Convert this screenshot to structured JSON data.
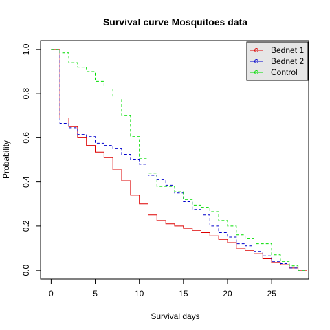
{
  "chart_data": {
    "type": "line",
    "step": true,
    "title": "Survival curve Mosquitoes data",
    "xlabel": "Survival days",
    "ylabel": "Probability",
    "xlim": [
      -1.2,
      29.2
    ],
    "ylim": [
      -0.04,
      1.04
    ],
    "xticks": [
      0,
      5,
      10,
      15,
      20,
      25
    ],
    "yticks": [
      0.0,
      0.2,
      0.4,
      0.6,
      0.8,
      1.0
    ],
    "xtick_labels": [
      "0",
      "5",
      "10",
      "15",
      "20",
      "25"
    ],
    "ytick_labels": [
      "0.0",
      "0.2",
      "0.4",
      "0.6",
      "0.8",
      "1.0"
    ],
    "legend": {
      "position": "top-right",
      "background": "#e6e6e6"
    },
    "series": [
      {
        "name": "Bednet 1",
        "color": "#dd0000",
        "line": "solid",
        "x": [
          0,
          1,
          2,
          3,
          4,
          5,
          6,
          7,
          8,
          9,
          10,
          11,
          12,
          13,
          14,
          15,
          16,
          17,
          18,
          19,
          20,
          21,
          22,
          23,
          24,
          25,
          26,
          27,
          28,
          29
        ],
        "y": [
          1.0,
          0.69,
          0.65,
          0.6,
          0.565,
          0.535,
          0.51,
          0.455,
          0.405,
          0.34,
          0.3,
          0.25,
          0.225,
          0.21,
          0.2,
          0.19,
          0.18,
          0.17,
          0.155,
          0.14,
          0.125,
          0.1,
          0.09,
          0.075,
          0.055,
          0.035,
          0.025,
          0.01,
          0.0,
          0.0
        ]
      },
      {
        "name": "Bednet 2",
        "color": "#0000cc",
        "line": "dashed",
        "x": [
          0,
          1,
          2,
          3,
          4,
          5,
          6,
          7,
          8,
          9,
          10,
          11,
          12,
          13,
          14,
          15,
          16,
          17,
          18,
          19,
          20,
          21,
          22,
          23,
          24,
          25,
          26,
          27,
          28,
          29
        ],
        "y": [
          1.0,
          0.665,
          0.645,
          0.615,
          0.605,
          0.575,
          0.565,
          0.55,
          0.525,
          0.5,
          0.48,
          0.43,
          0.41,
          0.385,
          0.35,
          0.31,
          0.275,
          0.25,
          0.2,
          0.17,
          0.15,
          0.12,
          0.11,
          0.085,
          0.065,
          0.04,
          0.03,
          0.01,
          0.0,
          0.0
        ]
      },
      {
        "name": "Control",
        "color": "#00dd00",
        "line": "dashed",
        "x": [
          0,
          1,
          2,
          3,
          4,
          5,
          6,
          7,
          8,
          9,
          10,
          11,
          12,
          13,
          14,
          15,
          16,
          17,
          18,
          19,
          20,
          21,
          22,
          23,
          24,
          25,
          26,
          27,
          28,
          29
        ],
        "y": [
          1.0,
          0.985,
          0.94,
          0.92,
          0.9,
          0.855,
          0.83,
          0.78,
          0.7,
          0.605,
          0.505,
          0.44,
          0.38,
          0.38,
          0.355,
          0.32,
          0.295,
          0.285,
          0.265,
          0.225,
          0.2,
          0.16,
          0.145,
          0.12,
          0.12,
          0.07,
          0.04,
          0.02,
          0.0,
          0.0
        ]
      }
    ]
  }
}
